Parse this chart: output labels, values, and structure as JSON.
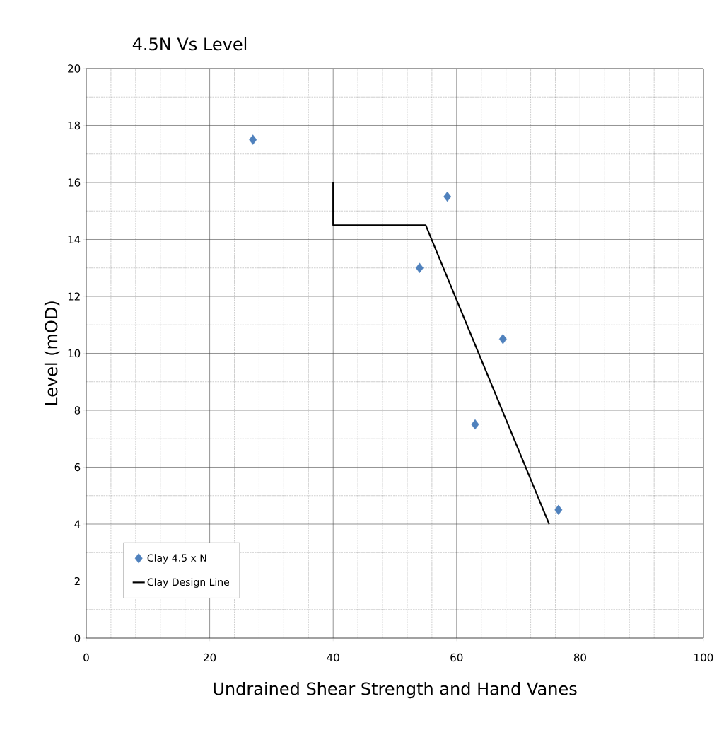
{
  "chart_data": {
    "type": "scatter",
    "title": "4.5N Vs Level",
    "xlabel": "Undrained Shear Strength and Hand Vanes",
    "ylabel": "Level (mOD)",
    "xlim": [
      0,
      100
    ],
    "ylim": [
      0,
      20
    ],
    "xticks": [
      0,
      20,
      40,
      60,
      80,
      100
    ],
    "yticks": [
      0,
      2,
      4,
      6,
      8,
      10,
      12,
      14,
      16,
      18,
      20
    ],
    "grid": true,
    "legend": "bottom left",
    "series": [
      {
        "name": "Clay 4.5 x N",
        "marker": "diamond",
        "color": "#4f81bd",
        "x": [
          27,
          58.5,
          54,
          67.5,
          63,
          76.5
        ],
        "values": [
          17.5,
          15.5,
          13,
          10.5,
          7.5,
          4.5
        ]
      },
      {
        "name": "Clay Design Line",
        "type": "line",
        "marker": "none",
        "line_style": "solid",
        "color": "#000000",
        "x": [
          40,
          40,
          55,
          75
        ],
        "values": [
          16,
          14.5,
          14.5,
          4
        ]
      }
    ]
  }
}
